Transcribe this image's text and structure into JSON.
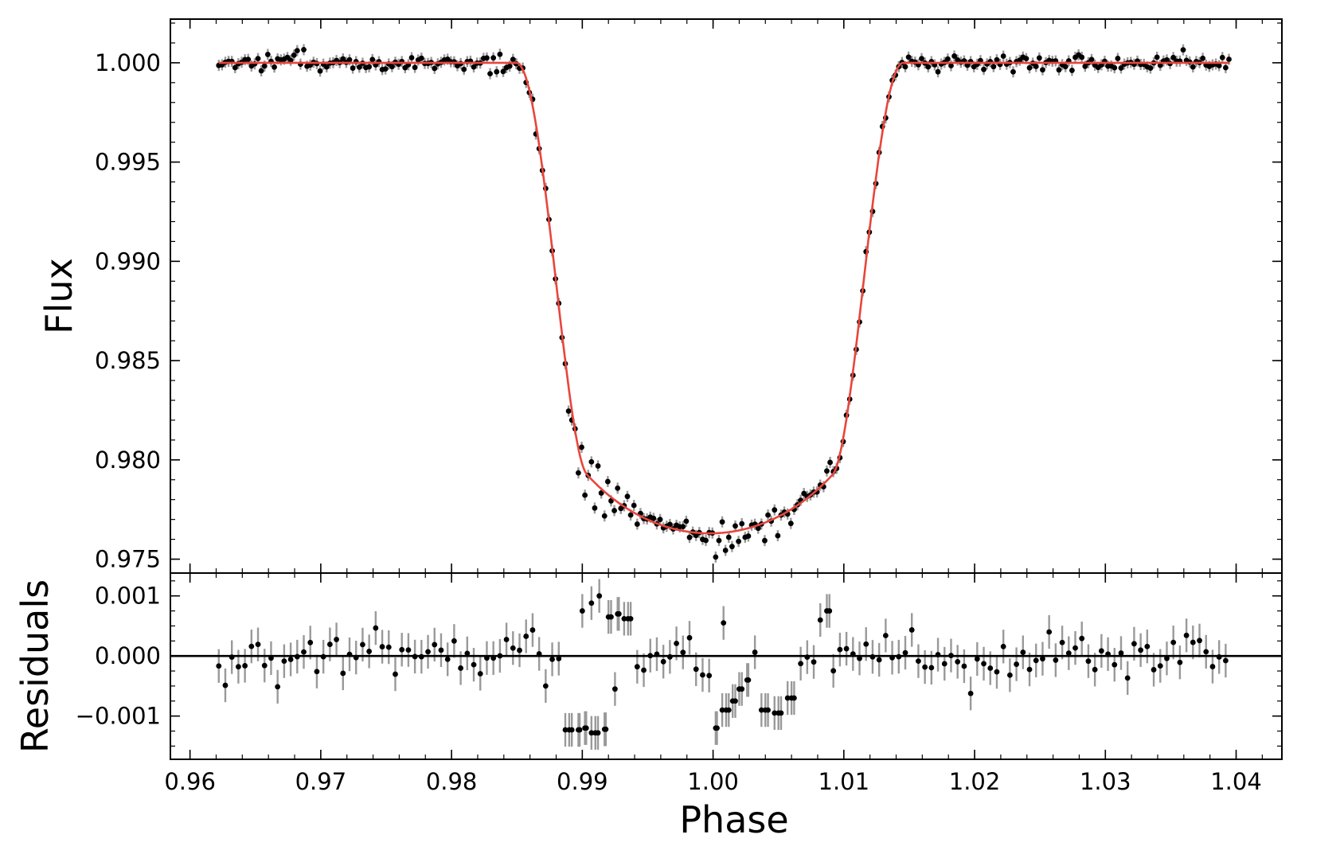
{
  "chart_data": [
    {
      "type": "scatter",
      "panel": "transit",
      "ylabel": "Flux",
      "xlim": [
        0.9585,
        1.0435
      ],
      "ylim": [
        0.9743,
        1.0022
      ],
      "x_ticks": [
        0.96,
        0.97,
        0.98,
        0.99,
        1.0,
        1.01,
        1.02,
        1.03,
        1.04
      ],
      "y_ticks": [
        0.975,
        0.98,
        0.985,
        0.99,
        0.995,
        1.0
      ],
      "y_tick_labels": [
        "0.975",
        "0.980",
        "0.985",
        "0.990",
        "0.995",
        "1.000"
      ],
      "model": {
        "color": "#e8453c",
        "depth": 0.0237,
        "center": 0.99975,
        "half_duration": 0.0121,
        "ingress": 0.0027,
        "limb_darkening": 0.55,
        "x_range": [
          0.9622,
          1.0395
        ]
      },
      "observations": {
        "x_start": 0.9622,
        "x_step": 0.00025,
        "count": 310,
        "error": 0.00028,
        "scatter": 0.00022
      }
    },
    {
      "type": "scatter",
      "panel": "residuals",
      "xlabel": "Phase",
      "ylabel": "Residuals",
      "xlim": [
        0.9585,
        1.0435
      ],
      "ylim": [
        -0.00172,
        0.00138
      ],
      "x_ticks": [
        0.96,
        0.97,
        0.98,
        0.99,
        1.0,
        1.01,
        1.02,
        1.03,
        1.04
      ],
      "x_tick_labels": [
        "0.96",
        "0.97",
        "0.98",
        "0.99",
        "1.00",
        "1.01",
        "1.02",
        "1.03",
        "1.04"
      ],
      "y_ticks": [
        -0.001,
        0.0,
        0.001
      ],
      "y_tick_labels": [
        "−0.001",
        "0.000",
        "0.001"
      ],
      "zero_line": 0.0,
      "error": 0.00028,
      "scatter": 0.00022,
      "systematics": [
        {
          "x": 0.989,
          "value": -0.00123
        },
        {
          "x": 0.9898,
          "value": -0.00123
        },
        {
          "x": 0.9903,
          "value": -0.0012
        },
        {
          "x": 0.991,
          "value": -0.00128
        },
        {
          "x": 0.9918,
          "value": -0.00122
        },
        {
          "x": 0.99,
          "value": 0.00075
        },
        {
          "x": 0.9907,
          "value": 0.00088
        },
        {
          "x": 0.9913,
          "value": 0.001
        },
        {
          "x": 0.992,
          "value": 0.00065
        },
        {
          "x": 0.9928,
          "value": 0.0007
        },
        {
          "x": 0.9935,
          "value": 0.00062
        },
        {
          "x": 0.9925,
          "value": -0.00055
        },
        {
          "x": 1.0003,
          "value": -0.0012
        },
        {
          "x": 1.001,
          "value": -0.0009
        },
        {
          "x": 1.0015,
          "value": -0.00075
        },
        {
          "x": 1.002,
          "value": -0.00055
        },
        {
          "x": 1.0026,
          "value": -0.0004
        },
        {
          "x": 1.004,
          "value": -0.0009
        },
        {
          "x": 1.005,
          "value": -0.00095
        },
        {
          "x": 1.006,
          "value": -0.0007
        },
        {
          "x": 1.0089,
          "value": 0.00075
        },
        {
          "x": 1.0008,
          "value": 0.00055
        }
      ]
    }
  ],
  "figure": {
    "frame_color": "#000000",
    "marker_color": "#000000",
    "errorbar_color": "#999999"
  }
}
